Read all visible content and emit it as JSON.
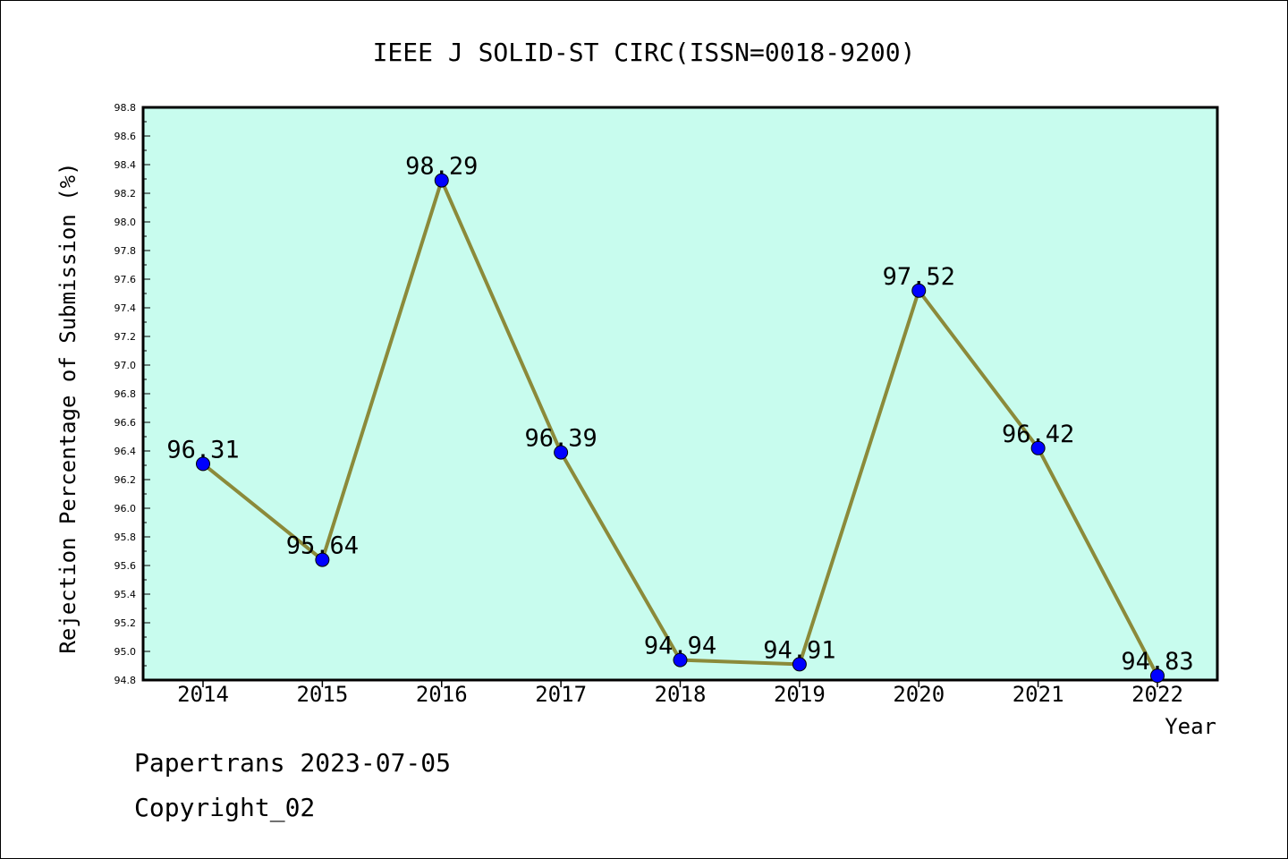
{
  "chart_data": {
    "type": "line",
    "title": "IEEE J SOLID-ST CIRC(ISSN=0018-9200)",
    "xlabel": "Year",
    "ylabel": "Rejection Percentage of Submission (%)",
    "categories": [
      "2014",
      "2015",
      "2016",
      "2017",
      "2018",
      "2019",
      "2020",
      "2021",
      "2022"
    ],
    "values": [
      96.31,
      95.64,
      98.29,
      96.39,
      94.94,
      94.91,
      97.52,
      96.42,
      94.83
    ],
    "data_labels": [
      "96.31",
      "95.64",
      "98.29",
      "96.39",
      "94.94",
      "94.91",
      "97.52",
      "96.42",
      "94.83"
    ],
    "ylim": [
      94.8,
      98.8
    ],
    "yticks": [
      "94.8",
      "95.0",
      "95.2",
      "95.4",
      "95.6",
      "95.8",
      "96.0",
      "96.2",
      "96.4",
      "96.6",
      "96.8",
      "97.0",
      "97.2",
      "97.4",
      "97.6",
      "97.8",
      "98.0",
      "98.2",
      "98.4",
      "98.6",
      "98.8"
    ],
    "grid": false,
    "colors": {
      "plot_background": "#c8fcee",
      "line": "#8b8a3a",
      "marker": "#0000ff"
    }
  },
  "footer": {
    "line1": "Papertrans 2023-07-05",
    "line2": "Copyright_02"
  }
}
